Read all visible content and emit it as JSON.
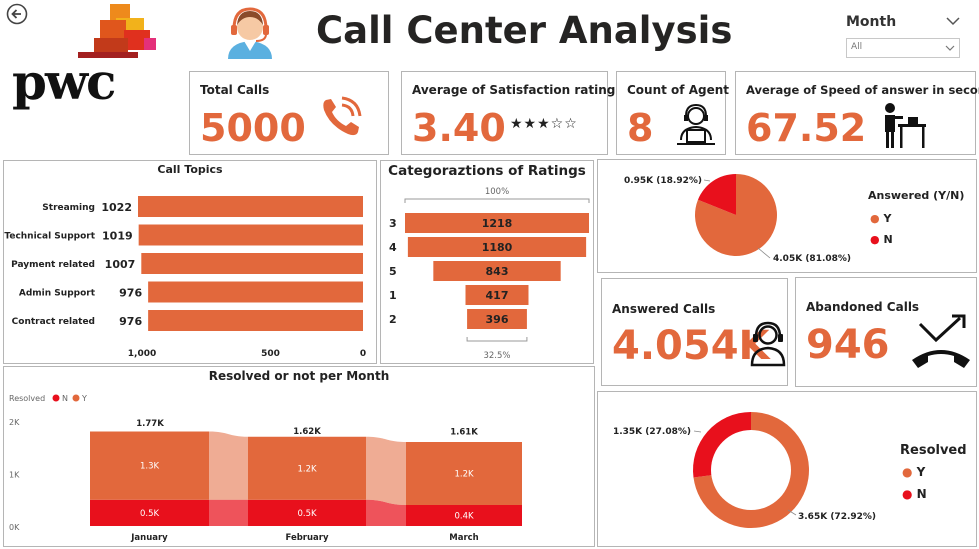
{
  "header": {
    "title": "Call Center Analysis",
    "logo_text": "pwc",
    "filter_label": "Month",
    "filter_value": "All"
  },
  "colors": {
    "accent": "#E2683C",
    "red": "#E8101C",
    "light": "#F3A98D"
  },
  "icons": [
    "back-arrow-icon",
    "agent-headset-icon",
    "phone-ringing-icon",
    "star-rating-icon",
    "agent-computer-icon",
    "person-phone-desk-icon",
    "headset-person-icon",
    "missed-call-icon",
    "chevron-down-icon"
  ],
  "kpis": {
    "total_calls": {
      "label": "Total Calls",
      "value": "5000"
    },
    "satisfaction": {
      "label": "Average of Satisfaction rating",
      "value": "3.40",
      "stars": "★★★☆☆",
      "rating": 3.4
    },
    "agents": {
      "label": "Count of Agent",
      "value": "8"
    },
    "speed": {
      "label": "Average of Speed of answer in seconds",
      "value": "67.52"
    },
    "answered": {
      "label": "Answered Calls",
      "value": "4.054K"
    },
    "abandoned": {
      "label": "Abandoned Calls",
      "value": "946"
    }
  },
  "charts": {
    "topics": {
      "title": "Call Topics"
    },
    "ratings": {
      "title": "Categoraztions of Ratings"
    },
    "answered_pie": {
      "legend_title": "Answered (Y/N)"
    },
    "resolved_donut": {
      "legend_title": "Resolved"
    },
    "resolved_month": {
      "title": "Resolved or not per Month"
    }
  },
  "chart_data": [
    {
      "type": "bar",
      "title": "Call Topics",
      "orientation": "horizontal-reversed",
      "categories": [
        "Streaming",
        "Technical Support",
        "Payment related",
        "Admin Support",
        "Contract related"
      ],
      "values": [
        1022,
        1019,
        1007,
        976,
        976
      ],
      "x_ticks": [
        "1,000",
        "500",
        "0"
      ],
      "xlim": [
        0,
        1022
      ]
    },
    {
      "type": "bar",
      "subtype": "funnel",
      "title": "Categoraztions of Ratings",
      "categories": [
        "3",
        "4",
        "5",
        "1",
        "2"
      ],
      "values": [
        1218,
        1180,
        843,
        417,
        396
      ],
      "top_label": "100%",
      "bottom_label": "32.5%"
    },
    {
      "type": "pie",
      "legend_title": "Answered (Y/N)",
      "labels": [
        "Y",
        "N"
      ],
      "values": [
        4054,
        946
      ],
      "data_labels": [
        "4.05K (81.08%)",
        "0.95K (18.92%)"
      ],
      "colors": [
        "#E2683C",
        "#E8101C"
      ]
    },
    {
      "type": "pie",
      "subtype": "donut",
      "legend_title": "Resolved",
      "labels": [
        "Y",
        "N"
      ],
      "values": [
        3646,
        1354
      ],
      "data_labels": [
        "3.65K (72.92%)",
        "1.35K (27.08%)"
      ],
      "colors": [
        "#E2683C",
        "#E8101C"
      ]
    },
    {
      "type": "bar",
      "subtype": "stacked-ribbon",
      "title": "Resolved or not per Month",
      "legend_title": "Resolved",
      "categories": [
        "January",
        "February",
        "March"
      ],
      "series": [
        {
          "name": "N",
          "values": [
            0.5,
            0.5,
            0.4
          ],
          "labels": [
            "0.5K",
            "0.5K",
            "0.4K"
          ],
          "color": "#E8101C"
        },
        {
          "name": "Y",
          "values": [
            1.3,
            1.2,
            1.2
          ],
          "labels": [
            "1.3K",
            "1.2K",
            "1.2K"
          ],
          "color": "#E2683C"
        }
      ],
      "totals": [
        1.77,
        1.62,
        1.61
      ],
      "total_labels": [
        "1.77K",
        "1.62K",
        "1.61K"
      ],
      "y_ticks": [
        "2K",
        "1K",
        "0K"
      ],
      "ylim": [
        0,
        2
      ]
    }
  ]
}
